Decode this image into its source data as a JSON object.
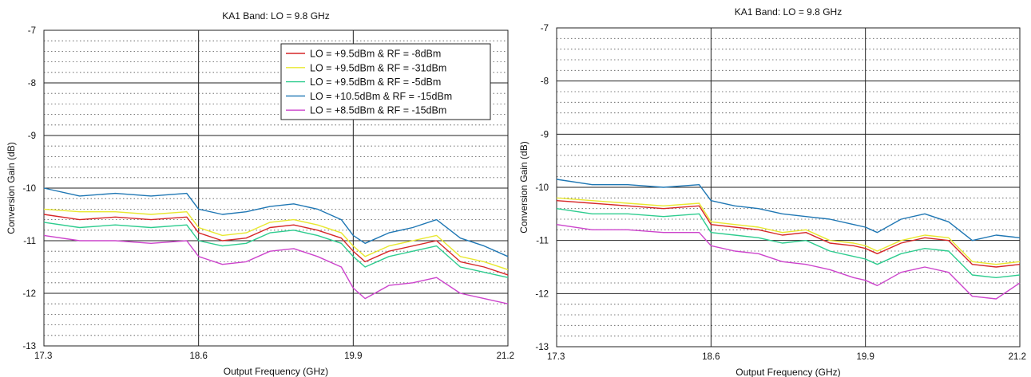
{
  "chart_data": [
    {
      "type": "line",
      "title": "KA1 Band: LO = 9.8 GHz",
      "xlabel": "Output Frequency (GHz)",
      "ylabel": "Conversion Gain (dB)",
      "xlim": [
        17.3,
        21.2
      ],
      "ylim": [
        -13,
        -7
      ],
      "xticks": [
        "17.3",
        "18.6",
        "19.9",
        "21.2"
      ],
      "yticks": [
        "-13",
        "-12",
        "-11",
        "-10",
        "-9",
        "-8",
        "-7"
      ],
      "grid": true,
      "legend": "top-right",
      "x": [
        17.3,
        17.6,
        17.9,
        18.2,
        18.5,
        18.6,
        18.8,
        19.0,
        19.2,
        19.4,
        19.6,
        19.8,
        19.9,
        20.0,
        20.2,
        20.4,
        20.6,
        20.8,
        21.0,
        21.2
      ],
      "series": [
        {
          "name": "LO = +9.5dBm & RF = -8dBm",
          "color": "#d62728",
          "values": [
            -10.5,
            -10.6,
            -10.55,
            -10.6,
            -10.55,
            -10.85,
            -11.0,
            -10.95,
            -10.75,
            -10.7,
            -10.8,
            -10.95,
            -11.2,
            -11.4,
            -11.2,
            -11.1,
            -11.0,
            -11.4,
            -11.5,
            -11.65
          ]
        },
        {
          "name": "LO = +9.5dBm & RF = -31dBm",
          "color": "#e8e830",
          "values": [
            -10.4,
            -10.45,
            -10.45,
            -10.5,
            -10.45,
            -10.75,
            -10.9,
            -10.85,
            -10.65,
            -10.6,
            -10.7,
            -10.85,
            -11.1,
            -11.3,
            -11.1,
            -11.0,
            -10.9,
            -11.3,
            -11.4,
            -11.55
          ]
        },
        {
          "name": "LO = +9.5dBm & RF = -5dBm",
          "color": "#2ecc8f",
          "values": [
            -10.65,
            -10.75,
            -10.7,
            -10.75,
            -10.7,
            -11.0,
            -11.1,
            -11.05,
            -10.85,
            -10.8,
            -10.9,
            -11.05,
            -11.3,
            -11.5,
            -11.3,
            -11.2,
            -11.1,
            -11.5,
            -11.6,
            -11.7
          ]
        },
        {
          "name": "LO = +10.5dBm & RF = -15dBm",
          "color": "#1f77b4",
          "values": [
            -10.0,
            -10.15,
            -10.1,
            -10.15,
            -10.1,
            -10.4,
            -10.5,
            -10.45,
            -10.35,
            -10.3,
            -10.4,
            -10.6,
            -10.9,
            -11.05,
            -10.85,
            -10.75,
            -10.6,
            -10.95,
            -11.1,
            -11.3
          ]
        },
        {
          "name": "LO = +8.5dBm & RF = -15dBm",
          "color": "#cc44cc",
          "values": [
            -10.9,
            -11.0,
            -11.0,
            -11.05,
            -11.0,
            -11.3,
            -11.45,
            -11.4,
            -11.2,
            -11.15,
            -11.3,
            -11.5,
            -11.9,
            -12.1,
            -11.85,
            -11.8,
            -11.7,
            -12.0,
            -12.1,
            -12.2
          ]
        }
      ]
    },
    {
      "type": "line",
      "title": "KA1 Band: LO = 9.8 GHz",
      "xlabel": "Output Frequency (GHz)",
      "ylabel": "Conversion Gain (dB)",
      "xlim": [
        17.3,
        21.2
      ],
      "ylim": [
        -13,
        -7
      ],
      "xticks": [
        "17.3",
        "18.6",
        "19.9",
        "21.2"
      ],
      "yticks": [
        "-13",
        "-12",
        "-11",
        "-10",
        "-9",
        "-8",
        "-7"
      ],
      "grid": true,
      "x": [
        17.3,
        17.6,
        17.9,
        18.2,
        18.5,
        18.6,
        18.8,
        19.0,
        19.2,
        19.4,
        19.6,
        19.8,
        19.9,
        20.0,
        20.2,
        20.4,
        20.6,
        20.8,
        21.0,
        21.2
      ],
      "series": [
        {
          "color": "#1f77b4",
          "values": [
            -9.85,
            -9.95,
            -9.95,
            -10.0,
            -9.95,
            -10.25,
            -10.35,
            -10.4,
            -10.5,
            -10.55,
            -10.6,
            -10.7,
            -10.75,
            -10.85,
            -10.6,
            -10.5,
            -10.65,
            -11.0,
            -10.9,
            -10.95
          ]
        },
        {
          "color": "#e8e830",
          "values": [
            -10.2,
            -10.25,
            -10.3,
            -10.35,
            -10.3,
            -10.65,
            -10.7,
            -10.75,
            -10.85,
            -10.8,
            -11.0,
            -11.05,
            -11.1,
            -11.2,
            -11.0,
            -10.9,
            -10.95,
            -11.4,
            -11.45,
            -11.4
          ]
        },
        {
          "color": "#d62728",
          "values": [
            -10.25,
            -10.3,
            -10.35,
            -10.4,
            -10.35,
            -10.7,
            -10.75,
            -10.8,
            -10.9,
            -10.85,
            -11.05,
            -11.1,
            -11.15,
            -11.25,
            -11.05,
            -10.95,
            -11.0,
            -11.45,
            -11.5,
            -11.45
          ]
        },
        {
          "color": "#2ecc8f",
          "values": [
            -10.4,
            -10.5,
            -10.5,
            -10.55,
            -10.5,
            -10.85,
            -10.9,
            -10.95,
            -11.05,
            -11.0,
            -11.2,
            -11.3,
            -11.35,
            -11.45,
            -11.25,
            -11.15,
            -11.2,
            -11.65,
            -11.7,
            -11.65
          ]
        },
        {
          "color": "#cc44cc",
          "values": [
            -10.7,
            -10.8,
            -10.8,
            -10.85,
            -10.85,
            -11.1,
            -11.2,
            -11.25,
            -11.4,
            -11.45,
            -11.55,
            -11.7,
            -11.75,
            -11.85,
            -11.6,
            -11.5,
            -11.6,
            -12.05,
            -12.1,
            -11.8
          ]
        }
      ]
    }
  ]
}
